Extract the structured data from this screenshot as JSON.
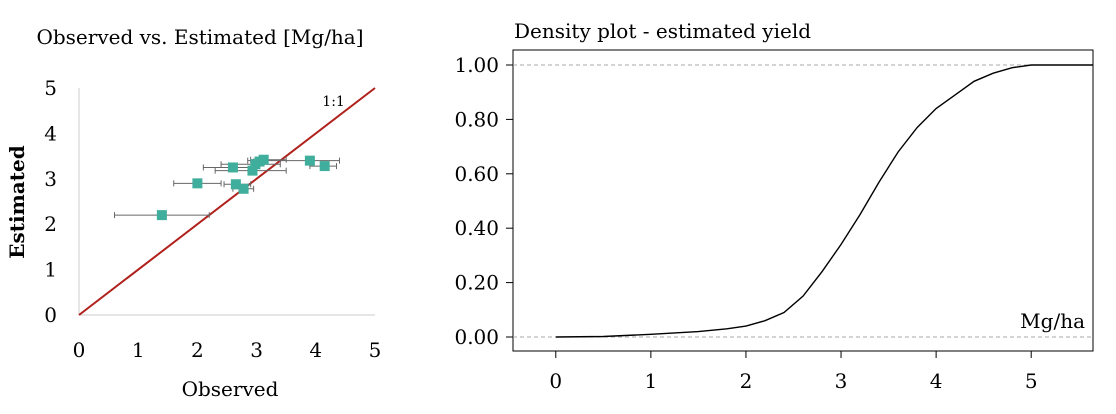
{
  "chart_data": [
    {
      "type": "scatter",
      "title": "Observed vs. Estimated [Mg/ha]",
      "xlabel": "Observed",
      "ylabel": "Estimated",
      "xlim": [
        0,
        5
      ],
      "ylim": [
        0,
        5
      ],
      "xticks": [
        "0",
        "1",
        "2",
        "3",
        "4",
        "5"
      ],
      "yticks": [
        "0",
        "1",
        "2",
        "3",
        "4",
        "5"
      ],
      "reference_line_label": "1:1",
      "colors": {
        "points": "#3FAE9C",
        "reference_line": "#B0211C",
        "error_bars": "#666666"
      },
      "points": [
        {
          "x": 1.4,
          "y": 2.2,
          "xerr_low": 0.6,
          "xerr_high": 2.2
        },
        {
          "x": 2.0,
          "y": 2.9,
          "xerr_low": 1.6,
          "xerr_high": 2.4
        },
        {
          "x": 2.6,
          "y": 3.25,
          "xerr_low": 2.1,
          "xerr_high": 3.0
        },
        {
          "x": 2.65,
          "y": 2.88,
          "xerr_low": 2.45,
          "xerr_high": 2.9
        },
        {
          "x": 2.78,
          "y": 2.78,
          "xerr_low": 2.6,
          "xerr_high": 2.95
        },
        {
          "x": 2.93,
          "y": 3.18,
          "xerr_low": 2.3,
          "xerr_high": 3.5
        },
        {
          "x": 2.98,
          "y": 3.32,
          "xerr_low": 2.4,
          "xerr_high": 3.4
        },
        {
          "x": 3.05,
          "y": 3.38,
          "xerr_low": 2.95,
          "xerr_high": 3.15
        },
        {
          "x": 3.12,
          "y": 3.42,
          "xerr_low": 2.9,
          "xerr_high": 3.5
        },
        {
          "x": 3.9,
          "y": 3.4,
          "xerr_low": 2.85,
          "xerr_high": 4.4
        },
        {
          "x": 4.15,
          "y": 3.28,
          "xerr_low": 3.9,
          "xerr_high": 4.35
        }
      ]
    },
    {
      "type": "line",
      "title": "Density plot  - estimated yield",
      "xlabel": "Mg/ha",
      "ylabel": "",
      "xlim": [
        -0.45,
        5.65
      ],
      "ylim": [
        0,
        1
      ],
      "xticks": [
        "0",
        "1",
        "2",
        "3",
        "4",
        "5"
      ],
      "yticks": [
        "0.00",
        "0.20",
        "0.40",
        "0.60",
        "0.80",
        "1.00"
      ],
      "reference_lines": [
        0,
        1
      ],
      "colors": {
        "line": "#000000",
        "reference": "#AAAAAA"
      },
      "series": [
        {
          "x": [
            0.0,
            0.5,
            1.0,
            1.5,
            1.8,
            2.0,
            2.2,
            2.4,
            2.6,
            2.8,
            3.0,
            3.2,
            3.4,
            3.6,
            3.8,
            4.0,
            4.2,
            4.4,
            4.6,
            4.8,
            5.0,
            5.65
          ],
          "values": [
            0.0,
            0.002,
            0.01,
            0.02,
            0.03,
            0.04,
            0.06,
            0.09,
            0.15,
            0.24,
            0.34,
            0.45,
            0.57,
            0.68,
            0.77,
            0.84,
            0.89,
            0.94,
            0.97,
            0.99,
            1.0,
            1.0
          ]
        }
      ]
    }
  ]
}
